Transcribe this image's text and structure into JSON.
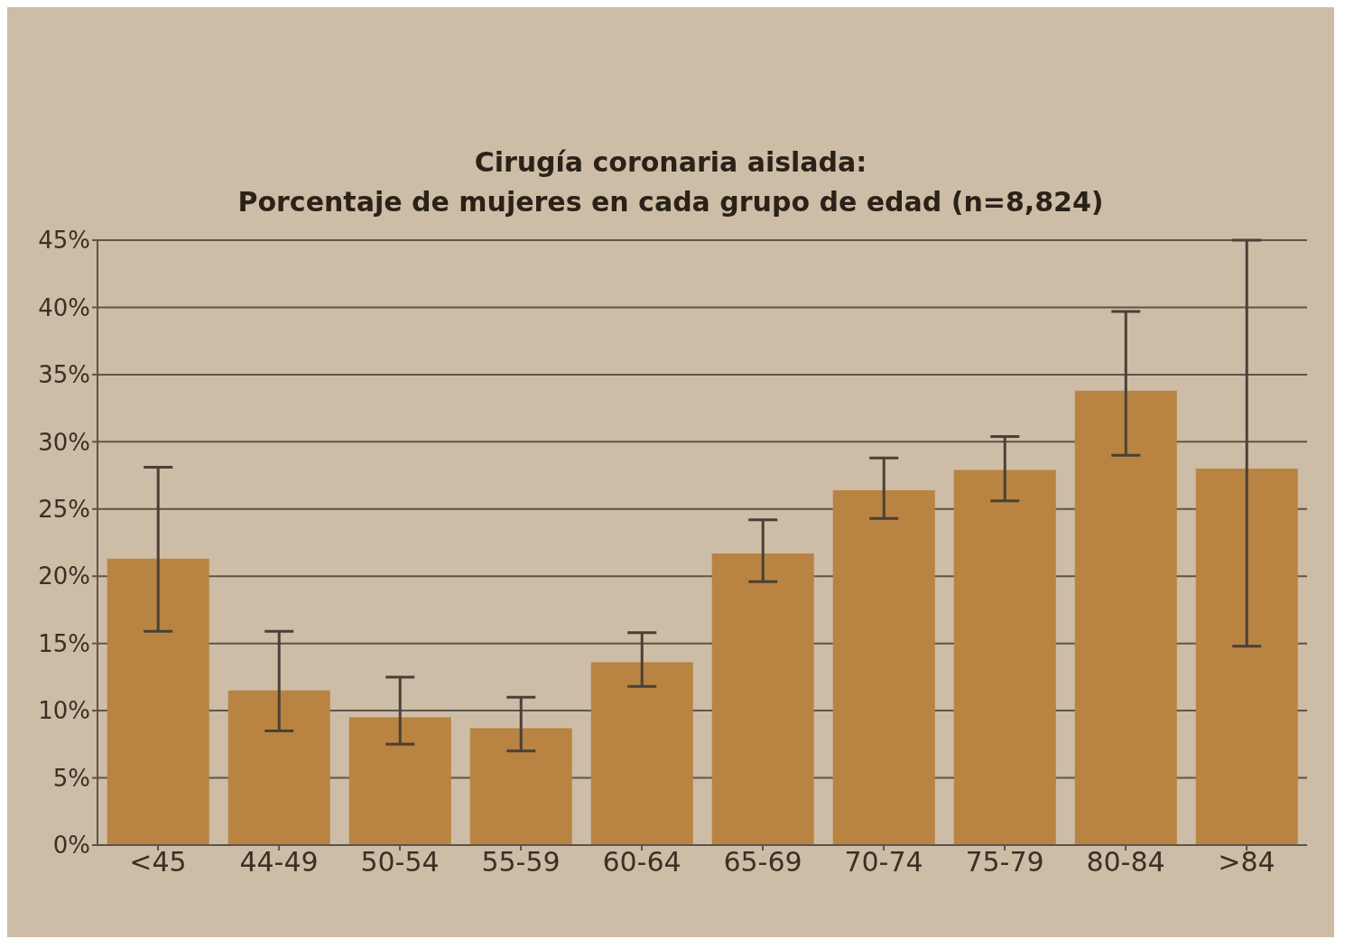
{
  "chart_data": {
    "type": "bar",
    "title": "Cirugía coronaria aislada:",
    "subtitle": "Porcentaje de mujeres en cada grupo de edad (n=8,824)",
    "categories": [
      "<45",
      "44-49",
      "50-54",
      "55-59",
      "60-64",
      "65-69",
      "70-74",
      "75-79",
      "80-84",
      ">84"
    ],
    "values": [
      21.3,
      11.5,
      9.5,
      8.7,
      13.6,
      21.7,
      26.4,
      27.9,
      33.8,
      28.0
    ],
    "errors": [
      [
        15.9,
        28.1
      ],
      [
        8.5,
        15.9
      ],
      [
        7.5,
        12.5
      ],
      [
        7.0,
        11.0
      ],
      [
        11.8,
        15.8
      ],
      [
        19.6,
        24.2
      ],
      [
        24.3,
        28.8
      ],
      [
        25.6,
        30.4
      ],
      [
        29.0,
        39.7
      ],
      [
        14.8,
        45
      ]
    ],
    "color": "#b98342",
    "ylim": [
      0,
      45
    ],
    "yticks": [
      {
        "value": 0,
        "label": "0%"
      },
      {
        "value": 5,
        "label": "5%"
      },
      {
        "value": 10,
        "label": "10%"
      },
      {
        "value": 15,
        "label": "15%"
      },
      {
        "value": 20,
        "label": "20%"
      },
      {
        "value": 25,
        "label": "25%"
      },
      {
        "value": 30,
        "label": "30%"
      },
      {
        "value": 35,
        "label": "35%"
      },
      {
        "value": 40,
        "label": "40%"
      },
      {
        "value": 45,
        "label": "45%"
      }
    ],
    "grid": "y"
  }
}
